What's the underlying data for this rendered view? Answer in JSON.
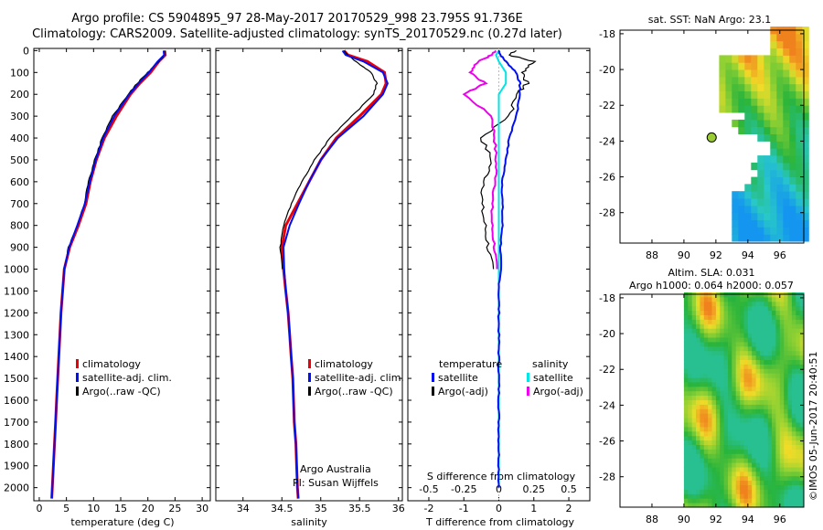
{
  "title": {
    "line1": "Argo profile: CS 5904895_97 28-May-2017 20170529_998 23.795S 91.736E",
    "line2": "Climatology: CARS2009. Satellite-adjusted climatology: synTS_20170529.nc (0.27d later)"
  },
  "panels": {
    "temperature": {
      "xlabel": "temperature (deg C)",
      "xticks": [
        "0",
        "5",
        "10",
        "15",
        "20",
        "25",
        "30"
      ],
      "legend": [
        "climatology",
        "satellite-adj. clim.",
        "Argo(..raw -QC)"
      ]
    },
    "salinity": {
      "xlabel": "salinity",
      "xticks": [
        "34",
        "34.5",
        "35",
        "35.5",
        "36"
      ],
      "legend": [
        "climatology",
        "satellite-adj. clim.",
        "Argo(..raw -QC)"
      ],
      "note1": "Argo Australia",
      "note2": "PI: Susan Wijffels"
    },
    "difference": {
      "xlabel": "T difference from climatology",
      "xticks": [
        "-2",
        "-1",
        "0",
        "1",
        "2"
      ],
      "s_label": "S difference from climatology",
      "s_ticks": [
        "-0.5",
        "-0.25",
        "0",
        "0.25",
        "0.5"
      ],
      "legend_t_title": "temperature",
      "legend_s_title": "salinity",
      "legend_t": [
        "satellite",
        "Argo(-adj)"
      ],
      "legend_s": [
        "satellite",
        "Argo(-adj)"
      ]
    },
    "depth_ticks": [
      "0",
      "100",
      "200",
      "300",
      "400",
      "500",
      "600",
      "700",
      "800",
      "900",
      "1000",
      "1100",
      "1200",
      "1300",
      "1400",
      "1500",
      "1600",
      "1700",
      "1800",
      "1900",
      "2000"
    ]
  },
  "maps": {
    "sst": {
      "title": "sat. SST: NaN Argo: 23.1",
      "yticks": [
        "-18",
        "-20",
        "-22",
        "-24",
        "-26",
        "-28"
      ],
      "xticks": [
        "88",
        "90",
        "92",
        "94",
        "96"
      ]
    },
    "sla": {
      "title1": "Altim. SLA: 0.031",
      "title2": "Argo h1000: 0.064 h2000: 0.057",
      "yticks": [
        "-18",
        "-20",
        "-22",
        "-24",
        "-26",
        "-28"
      ],
      "xticks": [
        "88",
        "90",
        "92",
        "94",
        "96"
      ]
    }
  },
  "footer": "©IMOS 05-Jun-2017 20:40:51",
  "colors": {
    "climatology": "#e8000b",
    "satellite": "#0010f0",
    "argo": "#000000",
    "sat_salinity": "#00e5e5",
    "argo_salinity": "#ee00ee",
    "argo_point": "#9acd32"
  },
  "chart_data": [
    {
      "type": "line",
      "panel": "temperature",
      "ylabel": "",
      "ylim": [
        2060,
        -10
      ],
      "xlim": [
        -1,
        31.5
      ],
      "depth": [
        0,
        20,
        50,
        100,
        150,
        200,
        300,
        400,
        500,
        600,
        700,
        800,
        900,
        1000,
        1100,
        1200,
        1300,
        1400,
        1500,
        1600,
        1700,
        1800,
        1900,
        2000,
        2050
      ],
      "series": [
        {
          "name": "climatology",
          "values": [
            23.1,
            23.2,
            22.0,
            20.5,
            18.5,
            16.8,
            14.2,
            12.0,
            10.5,
            9.4,
            8.6,
            7.2,
            5.6,
            4.6,
            4.3,
            4.0,
            3.8,
            3.6,
            3.4,
            3.2,
            3.0,
            2.8,
            2.6,
            2.4,
            2.3
          ]
        },
        {
          "name": "satellite-adj. clim.",
          "values": [
            22.9,
            23.0,
            21.8,
            20.2,
            18.3,
            16.6,
            13.8,
            11.8,
            10.4,
            9.3,
            8.4,
            7.0,
            5.5,
            4.6,
            4.3,
            4.0,
            3.8,
            3.6,
            3.4,
            3.2,
            3.0,
            2.8,
            2.6,
            2.4,
            2.3
          ]
        },
        {
          "name": "Argo(..raw -QC)",
          "values": [
            23.1,
            23.1,
            22.0,
            20.0,
            18.0,
            16.4,
            13.5,
            11.6,
            10.2,
            9.1,
            8.3,
            7.0,
            5.4,
            4.5
          ]
        }
      ]
    },
    {
      "type": "line",
      "panel": "salinity",
      "ylim": [
        2060,
        -10
      ],
      "xlim": [
        33.65,
        36.05
      ],
      "depth": [
        0,
        20,
        50,
        100,
        150,
        200,
        300,
        400,
        500,
        600,
        700,
        800,
        900,
        1000,
        1100,
        1200,
        1300,
        1400,
        1500,
        1600,
        1700,
        1800,
        1900,
        2000,
        2050
      ],
      "series": [
        {
          "name": "climatology",
          "values": [
            35.3,
            35.35,
            35.6,
            35.82,
            35.84,
            35.78,
            35.5,
            35.2,
            35.0,
            34.85,
            34.7,
            34.55,
            34.5,
            34.52,
            34.55,
            34.58,
            34.6,
            34.62,
            34.64,
            34.65,
            34.66,
            34.68,
            34.69,
            34.7,
            34.71
          ]
        },
        {
          "name": "satellite-adj. clim.",
          "values": [
            35.28,
            35.32,
            35.55,
            35.8,
            35.86,
            35.8,
            35.55,
            35.22,
            35.0,
            34.85,
            34.72,
            34.6,
            34.52,
            34.53,
            34.55,
            34.58,
            34.6,
            34.62,
            34.64,
            34.65,
            34.66,
            34.68,
            34.69,
            34.7,
            34.71
          ]
        },
        {
          "name": "Argo(..raw -QC)",
          "values": [
            35.3,
            35.35,
            35.45,
            35.65,
            35.72,
            35.68,
            35.4,
            35.12,
            34.92,
            34.76,
            34.62,
            34.52,
            34.48,
            34.5
          ]
        }
      ]
    },
    {
      "type": "line",
      "panel": "difference",
      "ylim": [
        2060,
        -10
      ],
      "xlim": [
        -2.6,
        2.6
      ],
      "s_scale": 4,
      "depth": [
        0,
        20,
        50,
        100,
        150,
        200,
        300,
        400,
        500,
        600,
        700,
        800,
        900,
        1000,
        1100,
        1200,
        1300,
        1400,
        1500,
        1600,
        1700,
        1800,
        1900,
        2000
      ],
      "series": [
        {
          "name": "satellite (T)",
          "values": [
            0.0,
            0.05,
            0.2,
            0.5,
            0.6,
            0.6,
            0.5,
            0.3,
            0.2,
            0.1,
            0.1,
            0.1,
            0.05,
            0.05,
            0.0,
            0.0,
            0.0,
            0.0,
            0.0,
            0.0,
            0.0,
            0.0,
            0.0,
            0.0
          ]
        },
        {
          "name": "Argo(-adj) (T)",
          "values": [
            0.5,
            0.3,
            1.0,
            0.7,
            0.8,
            0.5,
            0.3,
            -0.5,
            -0.2,
            -0.4,
            -0.5,
            -0.4,
            -0.3,
            -0.2
          ]
        },
        {
          "name": "satellite (S)",
          "values": [
            0.0,
            -0.02,
            0.0,
            0.05,
            0.05,
            0.0,
            0.0,
            0.0,
            0.0,
            0.0,
            0.0,
            0.0,
            0.0,
            0.0,
            0.0,
            0.0,
            0.0,
            0.0,
            0.0,
            0.0,
            0.0,
            0.0,
            0.0,
            0.0
          ]
        },
        {
          "name": "Argo(-adj) (S)",
          "values": [
            -0.02,
            -0.05,
            -0.15,
            -0.2,
            -0.1,
            -0.25,
            -0.05,
            -0.03,
            -0.02,
            -0.02,
            -0.05,
            -0.05,
            -0.03,
            -0.02
          ]
        }
      ]
    },
    {
      "type": "heatmap",
      "panel": "sst",
      "xlim": [
        86,
        97.5
      ],
      "ylim": [
        -29.7,
        -17.8
      ],
      "argo_point": [
        91.736,
        -23.795
      ]
    },
    {
      "type": "heatmap",
      "panel": "sla",
      "xlim": [
        86,
        97.5
      ],
      "ylim": [
        -29.7,
        -17.8
      ]
    }
  ]
}
